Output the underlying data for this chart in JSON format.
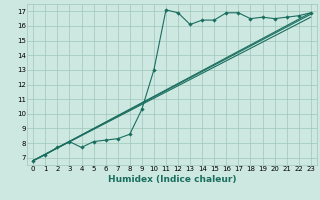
{
  "xlabel": "Humidex (Indice chaleur)",
  "bg_color": "#cde8e0",
  "grid_color": "#9ec8b8",
  "line_color": "#1a6e60",
  "xlim": [
    -0.5,
    23.5
  ],
  "ylim": [
    6.5,
    17.5
  ],
  "xticks": [
    0,
    1,
    2,
    3,
    4,
    5,
    6,
    7,
    8,
    9,
    10,
    11,
    12,
    13,
    14,
    15,
    16,
    17,
    18,
    19,
    20,
    21,
    22,
    23
  ],
  "yticks": [
    7,
    8,
    9,
    10,
    11,
    12,
    13,
    14,
    15,
    16,
    17
  ],
  "line1_x": [
    0,
    1,
    2,
    3,
    4,
    5,
    6,
    7,
    8,
    9,
    10,
    11,
    12,
    13,
    14,
    15,
    16,
    17,
    18,
    19,
    20,
    21,
    22,
    23
  ],
  "line1_y": [
    6.8,
    7.2,
    7.7,
    8.1,
    7.7,
    8.1,
    8.2,
    8.3,
    8.6,
    10.3,
    13.0,
    17.1,
    16.9,
    16.1,
    16.4,
    16.4,
    16.9,
    16.9,
    16.5,
    16.6,
    16.5,
    16.6,
    16.7,
    16.9
  ],
  "line2_x": [
    0,
    23
  ],
  "line2_y": [
    6.8,
    16.9
  ],
  "line3_x": [
    0,
    23
  ],
  "line3_y": [
    6.8,
    16.8
  ],
  "line4_x": [
    0,
    23
  ],
  "line4_y": [
    6.8,
    16.6
  ]
}
